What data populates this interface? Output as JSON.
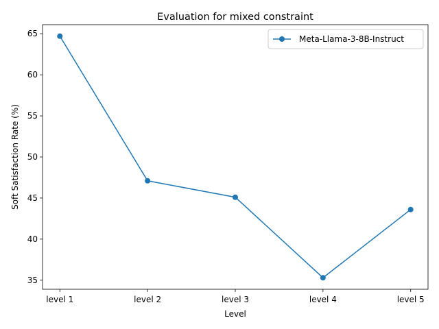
{
  "chart_data": {
    "type": "line",
    "title": "Evaluation for mixed constraint",
    "xlabel": "Level",
    "ylabel": "Soft Satisfaction Rate (%)",
    "categories": [
      "level 1",
      "level 2",
      "level 3",
      "level 4",
      "level 5"
    ],
    "series": [
      {
        "name": "Meta-Llama-3-8B-Instruct",
        "values": [
          64.7,
          47.1,
          45.1,
          35.3,
          43.6
        ],
        "color": "#1f77b4",
        "marker": "circle"
      }
    ],
    "ylim": [
      33.9,
      66.1
    ],
    "yticks": [
      35,
      40,
      45,
      50,
      55,
      60,
      65
    ],
    "grid": false,
    "legend_position": "top-right"
  }
}
